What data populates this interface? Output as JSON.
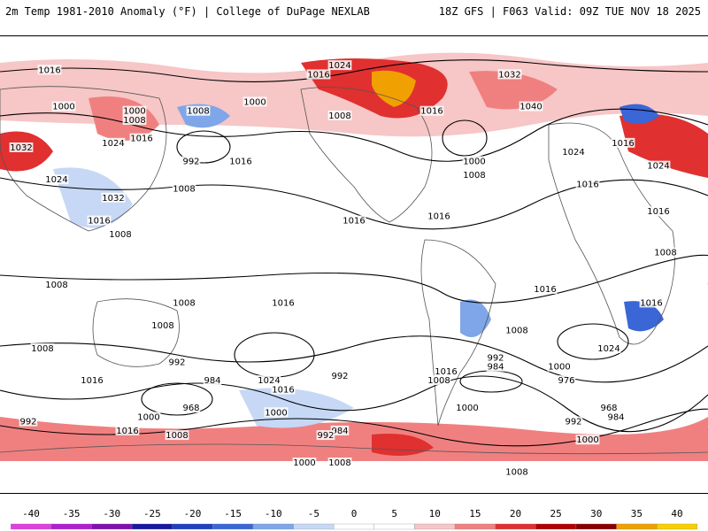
{
  "header": {
    "title": "2m Temp 1981-2010 Anomaly (°F) | College of DuPage NEXLAB",
    "run_info": "18Z GFS | F063 Valid: 09Z TUE NOV 18 2025"
  },
  "colors": {
    "warm_light": "#f7c6c6",
    "warm_mid": "#f08080",
    "warm_strong": "#e03030",
    "warm_deep": "#b00000",
    "warm_extreme": "#f0a000",
    "cool_light": "#c6d8f5",
    "cool_mid": "#7fa6e8",
    "cool_strong": "#3a66d6"
  },
  "legend": {
    "ticks": [
      "-40",
      "-35",
      "-30",
      "-25",
      "-20",
      "-15",
      "-10",
      "-5",
      "0",
      "5",
      "10",
      "15",
      "20",
      "25",
      "30",
      "35",
      "40"
    ],
    "swatches": [
      "#e040e0",
      "#b020d0",
      "#8010b0",
      "#1818a0",
      "#2040c0",
      "#3a66d6",
      "#7fa6e8",
      "#c6d8f5",
      "#ffffff",
      "#ffffff",
      "#f7c6c6",
      "#f08080",
      "#e03030",
      "#b00000",
      "#8a0000",
      "#f0a000",
      "#f8d000"
    ]
  },
  "isobar_labels": [
    {
      "text": "1016",
      "lon": 0.07,
      "lat": 0.08
    },
    {
      "text": "1024",
      "lon": 0.48,
      "lat": 0.07
    },
    {
      "text": "1016",
      "lon": 0.45,
      "lat": 0.09
    },
    {
      "text": "1032",
      "lon": 0.72,
      "lat": 0.09
    },
    {
      "text": "1000",
      "lon": 0.09,
      "lat": 0.16
    },
    {
      "text": "1000",
      "lon": 0.19,
      "lat": 0.17
    },
    {
      "text": "1008",
      "lon": 0.19,
      "lat": 0.19
    },
    {
      "text": "1008",
      "lon": 0.28,
      "lat": 0.17
    },
    {
      "text": "1000",
      "lon": 0.36,
      "lat": 0.15
    },
    {
      "text": "1008",
      "lon": 0.48,
      "lat": 0.18
    },
    {
      "text": "1016",
      "lon": 0.61,
      "lat": 0.17
    },
    {
      "text": "1040",
      "lon": 0.75,
      "lat": 0.16
    },
    {
      "text": "1016",
      "lon": 0.2,
      "lat": 0.23
    },
    {
      "text": "1032",
      "lon": 0.03,
      "lat": 0.25
    },
    {
      "text": "1024",
      "lon": 0.16,
      "lat": 0.24
    },
    {
      "text": "992",
      "lon": 0.27,
      "lat": 0.28
    },
    {
      "text": "1016",
      "lon": 0.34,
      "lat": 0.28
    },
    {
      "text": "1000",
      "lon": 0.67,
      "lat": 0.28
    },
    {
      "text": "1008",
      "lon": 0.67,
      "lat": 0.31
    },
    {
      "text": "1016",
      "lon": 0.88,
      "lat": 0.24
    },
    {
      "text": "1024",
      "lon": 0.81,
      "lat": 0.26
    },
    {
      "text": "1024",
      "lon": 0.93,
      "lat": 0.29
    },
    {
      "text": "1024",
      "lon": 0.08,
      "lat": 0.32
    },
    {
      "text": "1008",
      "lon": 0.26,
      "lat": 0.34
    },
    {
      "text": "1016",
      "lon": 0.83,
      "lat": 0.33
    },
    {
      "text": "1032",
      "lon": 0.16,
      "lat": 0.36
    },
    {
      "text": "1016",
      "lon": 0.5,
      "lat": 0.41
    },
    {
      "text": "1016",
      "lon": 0.62,
      "lat": 0.4
    },
    {
      "text": "1016",
      "lon": 0.93,
      "lat": 0.39
    },
    {
      "text": "1016",
      "lon": 0.14,
      "lat": 0.41
    },
    {
      "text": "1008",
      "lon": 0.17,
      "lat": 0.44
    },
    {
      "text": "1008",
      "lon": 0.94,
      "lat": 0.48
    },
    {
      "text": "1008",
      "lon": 0.08,
      "lat": 0.55
    },
    {
      "text": "1016",
      "lon": 0.77,
      "lat": 0.56
    },
    {
      "text": "1008",
      "lon": 0.26,
      "lat": 0.59
    },
    {
      "text": "1016",
      "lon": 0.4,
      "lat": 0.59
    },
    {
      "text": "1016",
      "lon": 0.92,
      "lat": 0.59
    },
    {
      "text": "1008",
      "lon": 0.23,
      "lat": 0.64
    },
    {
      "text": "1008",
      "lon": 0.73,
      "lat": 0.65
    },
    {
      "text": "1008",
      "lon": 0.06,
      "lat": 0.69
    },
    {
      "text": "992",
      "lon": 0.25,
      "lat": 0.72
    },
    {
      "text": "992",
      "lon": 0.7,
      "lat": 0.71
    },
    {
      "text": "984",
      "lon": 0.7,
      "lat": 0.73
    },
    {
      "text": "1024",
      "lon": 0.86,
      "lat": 0.69
    },
    {
      "text": "984",
      "lon": 0.3,
      "lat": 0.76
    },
    {
      "text": "992",
      "lon": 0.48,
      "lat": 0.75
    },
    {
      "text": "1024",
      "lon": 0.38,
      "lat": 0.76
    },
    {
      "text": "1016",
      "lon": 0.4,
      "lat": 0.78
    },
    {
      "text": "1016",
      "lon": 0.63,
      "lat": 0.74
    },
    {
      "text": "1008",
      "lon": 0.62,
      "lat": 0.76
    },
    {
      "text": "1000",
      "lon": 0.79,
      "lat": 0.73
    },
    {
      "text": "976",
      "lon": 0.8,
      "lat": 0.76
    },
    {
      "text": "1016",
      "lon": 0.13,
      "lat": 0.76
    },
    {
      "text": "968",
      "lon": 0.27,
      "lat": 0.82
    },
    {
      "text": "1000",
      "lon": 0.39,
      "lat": 0.83
    },
    {
      "text": "1000",
      "lon": 0.66,
      "lat": 0.82
    },
    {
      "text": "968",
      "lon": 0.86,
      "lat": 0.82
    },
    {
      "text": "984",
      "lon": 0.87,
      "lat": 0.84
    },
    {
      "text": "992",
      "lon": 0.81,
      "lat": 0.85
    },
    {
      "text": "992",
      "lon": 0.04,
      "lat": 0.85
    },
    {
      "text": "1000",
      "lon": 0.21,
      "lat": 0.84
    },
    {
      "text": "1016",
      "lon": 0.18,
      "lat": 0.87
    },
    {
      "text": "1008",
      "lon": 0.25,
      "lat": 0.88
    },
    {
      "text": "984",
      "lon": 0.48,
      "lat": 0.87
    },
    {
      "text": "992",
      "lon": 0.46,
      "lat": 0.88
    },
    {
      "text": "1000",
      "lon": 0.83,
      "lat": 0.89
    },
    {
      "text": "1000",
      "lon": 0.43,
      "lat": 0.94
    },
    {
      "text": "1008",
      "lon": 0.48,
      "lat": 0.94
    },
    {
      "text": "1008",
      "lon": 0.73,
      "lat": 0.96
    }
  ]
}
